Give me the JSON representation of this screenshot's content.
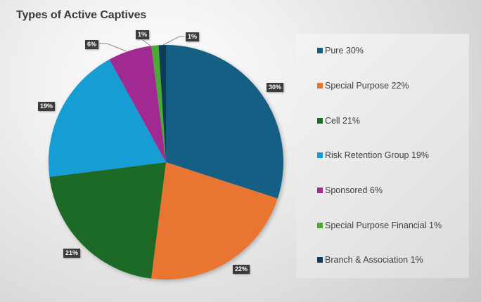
{
  "chart_data": {
    "type": "pie",
    "title": "Types of Active Captives",
    "categories": [
      "Pure",
      "Special Purpose",
      "Cell",
      "Risk Retention Group",
      "Sponsored",
      "Special Purpose Financial",
      "Branch & Association"
    ],
    "values": [
      30,
      22,
      21,
      19,
      6,
      1,
      1
    ],
    "unit": "%",
    "colors": [
      "#185f84",
      "#e97433",
      "#1b6b25",
      "#139dd4",
      "#a02a92",
      "#4ca935",
      "#0f3c55"
    ],
    "data_labels": [
      "30%",
      "22%",
      "21%",
      "19%",
      "6%",
      "1%",
      "1%"
    ],
    "start_angle": "12 o'clock",
    "direction": "clockwise",
    "legend_position": "right"
  },
  "title": "Types of Active Captives",
  "legend": [
    {
      "label": "Pure  30%",
      "color": "#185f84"
    },
    {
      "label": "Special Purpose  22%",
      "color": "#e97433"
    },
    {
      "label": "Cell  21%",
      "color": "#1b6b25"
    },
    {
      "label": "Risk Retention Group  19%",
      "color": "#139dd4"
    },
    {
      "label": "Sponsored  6%",
      "color": "#a02a92"
    },
    {
      "label": "Special Purpose Financial  1%",
      "color": "#4ca935"
    },
    {
      "label": "Branch & Association  1%",
      "color": "#0f3c55"
    }
  ],
  "labels": {
    "pure": "30%",
    "special_purpose": "22%",
    "cell": "21%",
    "rrg": "19%",
    "sponsored": "6%",
    "spf": "1%",
    "branch": "1%"
  }
}
